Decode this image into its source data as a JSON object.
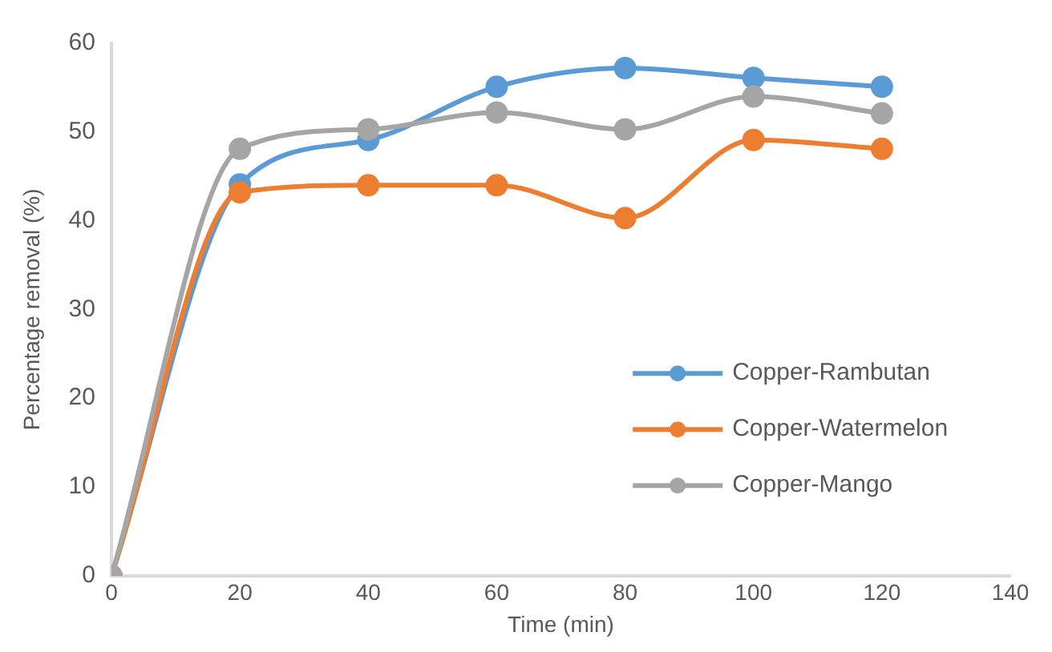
{
  "chart_data": {
    "type": "line",
    "xlabel": "Time (min)",
    "ylabel": "Percentage removal (%)",
    "x": [
      0,
      20,
      40,
      60,
      80,
      100,
      120
    ],
    "xlim": [
      0,
      140
    ],
    "xticks": [
      0,
      20,
      40,
      60,
      80,
      100,
      120,
      140
    ],
    "ylim": [
      0,
      60
    ],
    "yticks": [
      0,
      10,
      20,
      30,
      40,
      50,
      60
    ],
    "grid": false,
    "legend": "right",
    "marker": "circle",
    "line_style": "solid",
    "series": [
      {
        "name": "Copper-Rambutan",
        "color": "#5b9bd5",
        "values": [
          0,
          44.1,
          49.1,
          55.1,
          57.2,
          56.1,
          55.1
        ]
      },
      {
        "name": "Copper-Watermelon",
        "color": "#ed7d31",
        "values": [
          0,
          43.2,
          44,
          44,
          40.3,
          49.1,
          48.1
        ]
      },
      {
        "name": "Copper-Mango",
        "color": "#a5a5a5",
        "values": [
          0,
          48.1,
          50.3,
          52.2,
          50.3,
          54,
          52.1
        ]
      }
    ]
  }
}
